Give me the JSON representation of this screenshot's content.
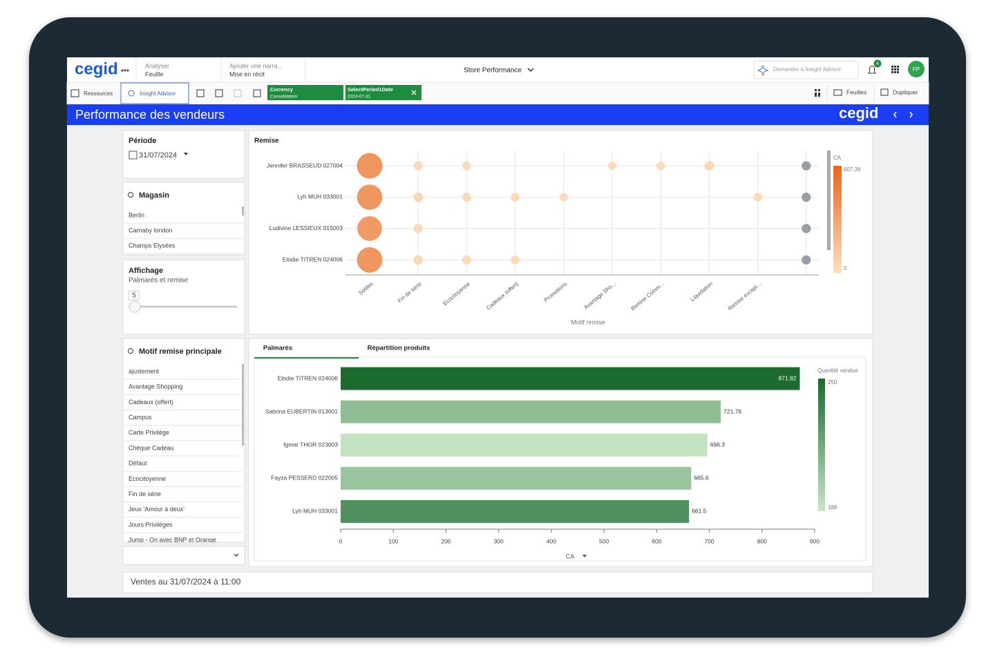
{
  "app_header": {
    "logo": "cegid",
    "analyze": {
      "label": "Analyser",
      "value": "Feuille"
    },
    "narrate": {
      "label": "Ajouter une narra...",
      "value": "Mise en récit"
    },
    "app_title": "Store Performance",
    "search_placeholder": "Demander à Insight Advisor",
    "notification_count": 4,
    "avatar": "FP"
  },
  "toolbar": {
    "resources": "Ressources",
    "insight": "Insight Advisor",
    "selections": [
      {
        "field": "Currency",
        "value": "Consolidation"
      },
      {
        "field": "SelectPeriod1Date",
        "value": "2024-07-31"
      }
    ],
    "sheets": "Feuilles",
    "duplicate": "Dupliquer"
  },
  "sheet": {
    "title": "Performance des vendeurs",
    "logo": "cegid"
  },
  "filters": {
    "period": {
      "title": "Période",
      "value": "31/07/2024"
    },
    "store": {
      "title": "Magasin",
      "items": [
        "Berlin",
        "Carnaby london",
        "Champs Elysées"
      ]
    },
    "display": {
      "title": "Affichage",
      "subtitle": "Palmarès et remise",
      "value": 5
    },
    "reason": {
      "title": "Motif remise principale",
      "items": [
        "ajustement",
        "Avantage Shopping",
        "Cadeaux (offert)",
        "Campus",
        "Carte Privilège",
        "Chèque Cadeau",
        "Défaut",
        "Ecocitoyenne",
        "Fin de série",
        "Jeux 'Amour à deux'",
        "Jours Privilèges",
        "Jump - On avec BNP et Orange"
      ]
    }
  },
  "status": "Ventes au 31/07/2024 à 11:00",
  "chart_data": [
    {
      "type": "bubble-grid",
      "title": "Remise",
      "x_label": "Motif remise",
      "categories": [
        "Soldes",
        "Fin de série",
        "Ecocitoyenne",
        "Cadeaux (offert)",
        "Promotions",
        "Avantage Sho...",
        "Remise Comm...",
        "Liquidation",
        "Remise except...",
        null
      ],
      "series": [
        {
          "name": "Jennifer BRASSEUD 027004",
          "values": [
            430,
            55,
            50,
            null,
            null,
            45,
            50,
            60,
            null,
            55
          ]
        },
        {
          "name": "Lyh MUH 033001",
          "values": [
            420,
            60,
            55,
            50,
            45,
            null,
            null,
            null,
            50,
            55
          ]
        },
        {
          "name": "Ludivine LESSIEUX 015003",
          "values": [
            400,
            55,
            null,
            null,
            null,
            null,
            null,
            null,
            null,
            55
          ]
        },
        {
          "name": "Elodie TITREN 024006",
          "values": [
            425,
            60,
            55,
            50,
            null,
            null,
            null,
            null,
            null,
            55
          ]
        }
      ],
      "color_scale": {
        "title": "CA",
        "range": [
          0,
          607.39
        ],
        "colors": [
          "#fbe1bf",
          "#e8661c"
        ],
        "ticks": [
          607.39,
          0
        ]
      },
      "other_color": "#8c959d"
    },
    {
      "type": "bar",
      "orientation": "horizontal",
      "tabs": [
        "Palmarès",
        "Répartition produits"
      ],
      "active_tab": 0,
      "categories": [
        "Elodie TITREN 024006",
        "Sabrina EUBERTIN 013001",
        "Igmar THOR 023003",
        "Fayza PESSERD 022005",
        "Lyh MUH 033001"
      ],
      "values": [
        871.82,
        721.76,
        696.3,
        665.6,
        661.5
      ],
      "color_values": [
        250,
        208,
        190,
        205,
        231
      ],
      "color_scale": {
        "title": "Quantité vendue",
        "range": [
          188,
          250
        ],
        "colors": [
          "#c8e6c5",
          "#1b6a2e"
        ],
        "ticks": [
          250,
          188
        ]
      },
      "x_label": "CA",
      "xlim": [
        0,
        900
      ],
      "xticks": [
        0,
        100,
        200,
        300,
        400,
        500,
        600,
        700,
        800,
        900
      ]
    }
  ]
}
